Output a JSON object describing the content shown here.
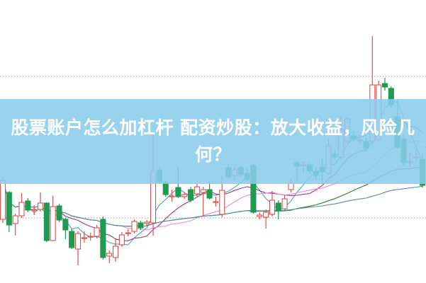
{
  "headline": {
    "line1": "股票账户怎么加杠杆 配资炒股：放大收益，风险几",
    "line2": "何？"
  },
  "colors": {
    "banner": "#8accea",
    "up_candle": "#d9534f",
    "down_candle": "#1f9a50",
    "grid": "#9a9a9a",
    "ma_lines": [
      "#4a9fb0",
      "#9a3a7a",
      "#e58ee0",
      "#2e7d32",
      "#5a8ca0"
    ]
  },
  "chart_data": {
    "type": "candlestick",
    "title": "",
    "grid": "dotted horizontal",
    "moving_averages": [
      5,
      10,
      20,
      40,
      60
    ],
    "candles": [
      [
        9.0,
        15.0,
        8.5,
        14.5
      ],
      [
        12.8,
        13.0,
        7.2,
        8.2
      ],
      [
        8.4,
        9.8,
        6.7,
        9.5
      ],
      [
        9.5,
        12.7,
        9.2,
        11.4
      ],
      [
        11.6,
        12.0,
        10.0,
        10.3
      ],
      [
        10.4,
        11.0,
        9.6,
        10.4
      ],
      [
        10.4,
        12.8,
        10.1,
        11.3
      ],
      [
        11.3,
        11.4,
        5.8,
        6.0
      ],
      [
        6.0,
        12.3,
        5.9,
        10.8
      ],
      [
        10.9,
        11.2,
        8.6,
        8.9
      ],
      [
        9.0,
        9.2,
        6.2,
        7.5
      ],
      [
        7.3,
        7.6,
        4.8,
        5.0
      ],
      [
        4.8,
        7.3,
        2.5,
        7.0
      ],
      [
        6.4,
        7.3,
        5.7,
        6.4
      ],
      [
        6.6,
        7.1,
        6.0,
        6.6
      ],
      [
        6.6,
        8.2,
        6.3,
        7.8
      ],
      [
        9.0,
        9.4,
        3.3,
        3.6
      ],
      [
        3.8,
        4.6,
        2.8,
        4.2
      ],
      [
        3.6,
        6.2,
        3.0,
        5.2
      ],
      [
        5.4,
        7.2,
        5.1,
        6.8
      ],
      [
        7.1,
        7.6,
        6.6,
        7.1
      ],
      [
        7.3,
        9.0,
        7.0,
        8.7
      ],
      [
        8.5,
        8.8,
        7.5,
        7.8
      ],
      [
        8.4,
        8.9,
        8.0,
        8.6
      ],
      [
        8.5,
        21.0,
        6.7,
        15.8
      ],
      [
        16.0,
        16.4,
        14.0,
        14.3
      ],
      [
        14.2,
        14.4,
        12.2,
        12.5
      ],
      [
        12.3,
        13.2,
        11.5,
        12.3
      ],
      [
        13.5,
        16.4,
        12.0,
        12.2
      ],
      [
        12.2,
        12.8,
        11.9,
        12.5
      ],
      [
        13.2,
        13.6,
        11.4,
        11.7
      ],
      [
        12.6,
        14.0,
        12.2,
        13.6
      ],
      [
        12.8,
        13.6,
        9.4,
        13.2
      ],
      [
        13.2,
        14.5,
        11.8,
        12.0
      ],
      [
        11.5,
        12.2,
        10.8,
        11.5
      ],
      [
        9.7,
        15.2,
        9.3,
        13.1
      ],
      [
        16.3,
        16.8,
        14.7,
        15.0
      ],
      [
        15.2,
        16.4,
        14.6,
        16.0
      ],
      [
        16.3,
        16.6,
        15.0,
        15.3
      ],
      [
        15.5,
        16.2,
        14.4,
        14.7
      ],
      [
        16.6,
        16.8,
        9.8,
        10.0
      ],
      [
        9.4,
        10.0,
        9.0,
        9.6
      ],
      [
        9.3,
        10.4,
        7.7,
        10.0
      ],
      [
        9.7,
        13.0,
        9.4,
        11.7
      ],
      [
        11.3,
        11.7,
        9.0,
        10.2
      ],
      [
        10.5,
        12.4,
        10.2,
        11.9
      ],
      [
        13.2,
        14.7,
        12.8,
        14.1
      ],
      [
        17.0,
        17.2,
        14.5,
        16.5
      ],
      [
        16.7,
        17.2,
        15.5,
        16.7
      ],
      [
        16.7,
        17.0,
        15.4,
        15.8
      ],
      [
        15.8,
        16.4,
        14.6,
        15.2
      ],
      [
        16.4,
        17.6,
        14.0,
        15.7
      ],
      [
        15.5,
        20.5,
        15.2,
        19.4
      ],
      [
        18.2,
        18.8,
        17.5,
        17.8
      ],
      [
        17.8,
        23.5,
        17.5,
        21.6
      ],
      [
        20.0,
        23.5,
        19.5,
        23.2
      ],
      [
        20.8,
        21.5,
        20.0,
        20.3
      ],
      [
        20.2,
        21.0,
        19.6,
        20.2
      ],
      [
        20.0,
        20.6,
        18.5,
        19.0
      ],
      [
        20.0,
        34.9,
        19.5,
        28.0
      ],
      [
        20.3,
        28.6,
        20.0,
        28.0
      ],
      [
        28.2,
        29.0,
        27.2,
        27.7
      ],
      [
        27.5,
        27.8,
        24.8,
        25.2
      ],
      [
        23.5,
        26.0,
        19.0,
        19.2
      ],
      [
        20.3,
        21.0,
        16.5,
        17.0
      ],
      [
        17.2,
        18.4,
        16.4,
        17.2
      ],
      [
        17.8,
        19.0,
        17.0,
        17.8
      ],
      [
        17.5,
        18.0,
        13.5,
        13.8
      ]
    ],
    "grid_levels": [
      9.2,
      19.2,
      29.2
    ],
    "ylim": [
      0,
      40
    ]
  }
}
